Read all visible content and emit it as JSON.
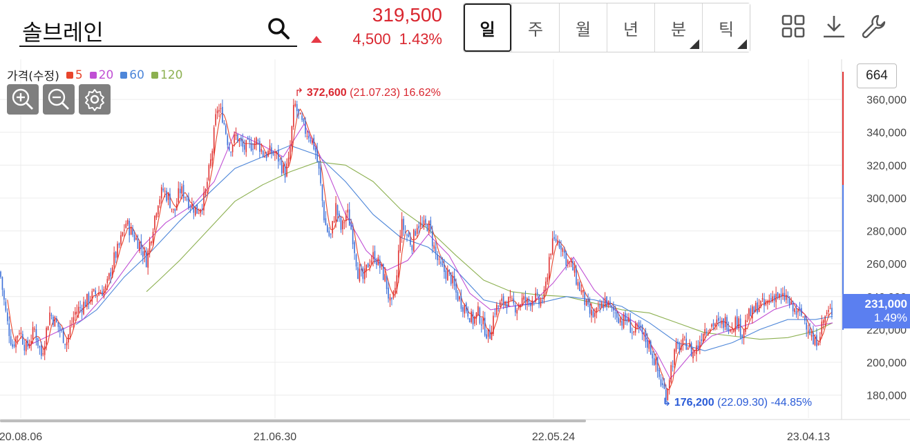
{
  "header": {
    "stock_name": "솔브레인",
    "price": "319,500",
    "change": "4,500",
    "change_pct": "1.43%",
    "up_color": "#d9262f"
  },
  "periods": [
    {
      "label": "일",
      "active": true,
      "has_menu": false
    },
    {
      "label": "주",
      "active": false,
      "has_menu": false
    },
    {
      "label": "월",
      "active": false,
      "has_menu": false
    },
    {
      "label": "년",
      "active": false,
      "has_menu": false
    },
    {
      "label": "분",
      "active": false,
      "has_menu": true
    },
    {
      "label": "틱",
      "active": false,
      "has_menu": true
    }
  ],
  "toolbar": {
    "icons": [
      "grid-layout-icon",
      "download-icon",
      "wrench-icon"
    ]
  },
  "chart": {
    "count_badge": "664",
    "last_price_label": "231,000",
    "last_change_label": "1.49%",
    "high_annotation": {
      "value": "372,600",
      "date": "(21.07.23)",
      "pct": "16.62%"
    },
    "low_annotation": {
      "value": "176,200",
      "date": "(22.09.30)",
      "pct": "-44.85%"
    }
  },
  "chart_data": {
    "type": "candlestick",
    "legend_title": "가격(수정)",
    "y_range": [
      166000,
      376000
    ],
    "y_ticks": [
      180000,
      200000,
      220000,
      240000,
      260000,
      280000,
      300000,
      320000,
      340000,
      360000
    ],
    "y_tick_labels": [
      "180,000",
      "200,000",
      "220,000",
      "240,000",
      "260,000",
      "280,000",
      "300,000",
      "320,000",
      "340,000",
      "360,000"
    ],
    "x_tick_labels": [
      "20.08.06",
      "21.06.30",
      "22.05.24",
      "23.04.13"
    ],
    "grid": true,
    "up_color": "#e03131",
    "down_color": "#3b6fd8",
    "moving_averages": [
      {
        "name": "5",
        "color": "#e8452c"
      },
      {
        "name": "20",
        "color": "#c04fd4"
      },
      {
        "name": "60",
        "color": "#4d86d9"
      },
      {
        "name": "120",
        "color": "#8cb050"
      }
    ],
    "price_path": [
      [
        0,
        255000
      ],
      [
        10,
        225000
      ],
      [
        18,
        210000
      ],
      [
        28,
        220000
      ],
      [
        38,
        208000
      ],
      [
        50,
        220000
      ],
      [
        60,
        204000
      ],
      [
        72,
        230000
      ],
      [
        84,
        222000
      ],
      [
        96,
        212000
      ],
      [
        108,
        230000
      ],
      [
        120,
        235000
      ],
      [
        132,
        240000
      ],
      [
        144,
        243000
      ],
      [
        154,
        245000
      ],
      [
        164,
        262000
      ],
      [
        172,
        270000
      ],
      [
        182,
        285000
      ],
      [
        192,
        278000
      ],
      [
        202,
        272000
      ],
      [
        212,
        262000
      ],
      [
        220,
        280000
      ],
      [
        228,
        298000
      ],
      [
        236,
        305000
      ],
      [
        244,
        300000
      ],
      [
        252,
        290000
      ],
      [
        260,
        305000
      ],
      [
        268,
        302000
      ],
      [
        276,
        296000
      ],
      [
        286,
        292000
      ],
      [
        296,
        300000
      ],
      [
        306,
        325000
      ],
      [
        314,
        355000
      ],
      [
        322,
        350000
      ],
      [
        332,
        330000
      ],
      [
        342,
        338000
      ],
      [
        352,
        330000
      ],
      [
        362,
        332000
      ],
      [
        372,
        335000
      ],
      [
        382,
        326000
      ],
      [
        392,
        328000
      ],
      [
        402,
        325000
      ],
      [
        412,
        315000
      ],
      [
        418,
        322000
      ],
      [
        426,
        358000
      ],
      [
        432,
        350000
      ],
      [
        440,
        342000
      ],
      [
        448,
        338000
      ],
      [
        456,
        330000
      ],
      [
        462,
        315000
      ],
      [
        470,
        285000
      ],
      [
        478,
        275000
      ],
      [
        486,
        295000
      ],
      [
        494,
        280000
      ],
      [
        502,
        292000
      ],
      [
        510,
        278000
      ],
      [
        518,
        255000
      ],
      [
        526,
        250000
      ],
      [
        534,
        262000
      ],
      [
        542,
        265000
      ],
      [
        550,
        258000
      ],
      [
        558,
        250000
      ],
      [
        566,
        232000
      ],
      [
        574,
        250000
      ],
      [
        580,
        285000
      ],
      [
        588,
        278000
      ],
      [
        596,
        272000
      ],
      [
        604,
        285000
      ],
      [
        612,
        282000
      ],
      [
        620,
        284000
      ],
      [
        628,
        270000
      ],
      [
        636,
        258000
      ],
      [
        644,
        255000
      ],
      [
        652,
        252000
      ],
      [
        660,
        242000
      ],
      [
        668,
        236000
      ],
      [
        676,
        232000
      ],
      [
        684,
        225000
      ],
      [
        692,
        230000
      ],
      [
        700,
        222000
      ],
      [
        708,
        215000
      ],
      [
        716,
        232000
      ],
      [
        724,
        235000
      ],
      [
        732,
        238000
      ],
      [
        740,
        235000
      ],
      [
        748,
        234000
      ],
      [
        756,
        238000
      ],
      [
        764,
        236000
      ],
      [
        772,
        240000
      ],
      [
        780,
        236000
      ],
      [
        788,
        240000
      ],
      [
        796,
        268000
      ],
      [
        804,
        275000
      ],
      [
        812,
        272000
      ],
      [
        820,
        262000
      ],
      [
        828,
        258000
      ],
      [
        836,
        248000
      ],
      [
        844,
        240000
      ],
      [
        852,
        230000
      ],
      [
        860,
        228000
      ],
      [
        868,
        232000
      ],
      [
        876,
        238000
      ],
      [
        884,
        232000
      ],
      [
        892,
        230000
      ],
      [
        900,
        225000
      ],
      [
        908,
        226000
      ],
      [
        916,
        218000
      ],
      [
        924,
        220000
      ],
      [
        932,
        215000
      ],
      [
        940,
        210000
      ],
      [
        948,
        200000
      ],
      [
        956,
        188000
      ],
      [
        964,
        180000
      ],
      [
        970,
        195000
      ],
      [
        978,
        208000
      ],
      [
        986,
        210000
      ],
      [
        994,
        212000
      ],
      [
        1002,
        205000
      ],
      [
        1010,
        210000
      ],
      [
        1018,
        220000
      ],
      [
        1026,
        222000
      ],
      [
        1034,
        224000
      ],
      [
        1042,
        222000
      ],
      [
        1050,
        225000
      ],
      [
        1058,
        222000
      ],
      [
        1066,
        226000
      ],
      [
        1074,
        218000
      ],
      [
        1082,
        228000
      ],
      [
        1090,
        230000
      ],
      [
        1098,
        236000
      ],
      [
        1106,
        234000
      ],
      [
        1114,
        238000
      ],
      [
        1122,
        242000
      ],
      [
        1130,
        238000
      ],
      [
        1138,
        240000
      ],
      [
        1146,
        232000
      ],
      [
        1154,
        230000
      ],
      [
        1162,
        228000
      ],
      [
        1170,
        222000
      ],
      [
        1178,
        210000
      ],
      [
        1186,
        218000
      ],
      [
        1194,
        228000
      ],
      [
        1202,
        231000
      ]
    ],
    "ma120_path": [
      [
        212,
        243000
      ],
      [
        230,
        250000
      ],
      [
        260,
        262000
      ],
      [
        300,
        280000
      ],
      [
        340,
        298000
      ],
      [
        380,
        308000
      ],
      [
        420,
        316000
      ],
      [
        460,
        322000
      ],
      [
        500,
        320000
      ],
      [
        540,
        310000
      ],
      [
        580,
        293000
      ],
      [
        620,
        281000
      ],
      [
        660,
        265000
      ],
      [
        700,
        250000
      ],
      [
        740,
        243000
      ],
      [
        780,
        241000
      ],
      [
        820,
        240000
      ],
      [
        860,
        236000
      ],
      [
        900,
        232000
      ],
      [
        940,
        230000
      ],
      [
        980,
        224000
      ],
      [
        1020,
        218000
      ],
      [
        1060,
        216000
      ],
      [
        1100,
        214000
      ],
      [
        1140,
        215000
      ],
      [
        1180,
        219000
      ],
      [
        1205,
        224000
      ]
    ],
    "ma60_path": [
      [
        110,
        223000
      ],
      [
        140,
        232000
      ],
      [
        180,
        252000
      ],
      [
        220,
        268000
      ],
      [
        260,
        286000
      ],
      [
        300,
        302000
      ],
      [
        340,
        318000
      ],
      [
        380,
        325000
      ],
      [
        420,
        332000
      ],
      [
        460,
        326000
      ],
      [
        500,
        310000
      ],
      [
        540,
        290000
      ],
      [
        580,
        276000
      ],
      [
        620,
        270000
      ],
      [
        660,
        256000
      ],
      [
        700,
        238000
      ],
      [
        740,
        234000
      ],
      [
        780,
        236000
      ],
      [
        820,
        240000
      ],
      [
        860,
        238000
      ],
      [
        900,
        234000
      ],
      [
        940,
        224000
      ],
      [
        980,
        212000
      ],
      [
        1020,
        207000
      ],
      [
        1060,
        212000
      ],
      [
        1100,
        220000
      ],
      [
        1140,
        226000
      ],
      [
        1180,
        226000
      ],
      [
        1205,
        228000
      ]
    ],
    "ma20_path": [
      [
        40,
        210000
      ],
      [
        80,
        218000
      ],
      [
        120,
        226000
      ],
      [
        160,
        245000
      ],
      [
        200,
        268000
      ],
      [
        240,
        285000
      ],
      [
        280,
        296000
      ],
      [
        310,
        310000
      ],
      [
        340,
        340000
      ],
      [
        380,
        332000
      ],
      [
        410,
        325000
      ],
      [
        440,
        345000
      ],
      [
        470,
        320000
      ],
      [
        500,
        290000
      ],
      [
        530,
        268000
      ],
      [
        560,
        256000
      ],
      [
        590,
        262000
      ],
      [
        620,
        278000
      ],
      [
        650,
        265000
      ],
      [
        680,
        242000
      ],
      [
        710,
        232000
      ],
      [
        740,
        234000
      ],
      [
        770,
        236000
      ],
      [
        800,
        248000
      ],
      [
        830,
        264000
      ],
      [
        860,
        244000
      ],
      [
        890,
        232000
      ],
      [
        920,
        224000
      ],
      [
        950,
        206000
      ],
      [
        970,
        190000
      ],
      [
        1000,
        205000
      ],
      [
        1030,
        216000
      ],
      [
        1060,
        220000
      ],
      [
        1090,
        224000
      ],
      [
        1120,
        232000
      ],
      [
        1150,
        236000
      ],
      [
        1180,
        222000
      ],
      [
        1205,
        224000
      ]
    ]
  }
}
